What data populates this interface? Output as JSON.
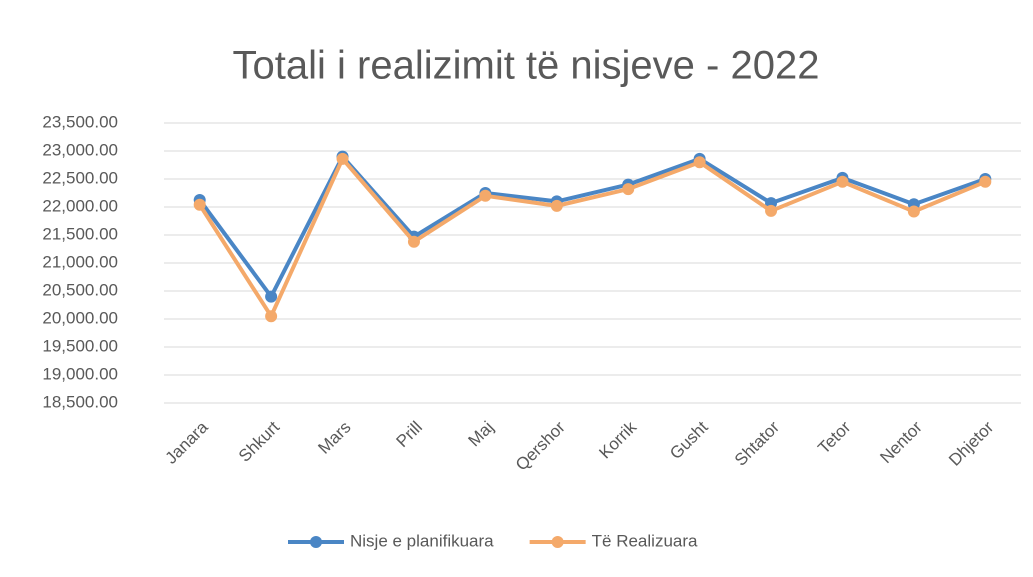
{
  "chart_data": {
    "type": "line",
    "title": "Totali i realizimit të nisjeve - 2022",
    "categories": [
      "Janara",
      "Shkurt",
      "Mars",
      "Prill",
      "Maj",
      "Qershor",
      "Korrik",
      "Gusht",
      "Shtator",
      "Tetor",
      "Nentor",
      "Dhjetor"
    ],
    "series": [
      {
        "name": "Nisje e planifikuara",
        "color": "#4a86c5",
        "values": [
          22125,
          20400,
          22900,
          21470,
          22250,
          22100,
          22400,
          22860,
          22070,
          22520,
          22050,
          22500
        ]
      },
      {
        "name": "Të Realizuara",
        "color": "#f4a96a",
        "values": [
          22040,
          20050,
          22860,
          21380,
          22200,
          22020,
          22320,
          22800,
          21930,
          22450,
          21920,
          22450
        ]
      }
    ],
    "ylim": [
      18500,
      23500
    ],
    "yticks": [
      {
        "value": 18500,
        "label": "18,500.00"
      },
      {
        "value": 19000,
        "label": "19,000.00"
      },
      {
        "value": 19500,
        "label": "19,500.00"
      },
      {
        "value": 20000,
        "label": "20,000.00"
      },
      {
        "value": 20500,
        "label": "20,500.00"
      },
      {
        "value": 21000,
        "label": "21,000.00"
      },
      {
        "value": 21500,
        "label": "21,500.00"
      },
      {
        "value": 22000,
        "label": "22,000.00"
      },
      {
        "value": 22500,
        "label": "22,500.00"
      },
      {
        "value": 23000,
        "label": "23,000.00"
      },
      {
        "value": 23500,
        "label": "23,500.00"
      }
    ],
    "grid": true,
    "legend": "bottom"
  }
}
